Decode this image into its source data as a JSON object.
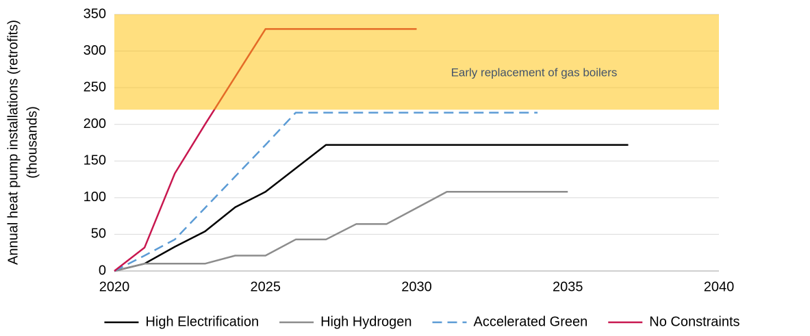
{
  "chart_data": {
    "type": "line",
    "y_label": [
      "Annual heat pump installations (retrofits)",
      "(thousands)"
    ],
    "annotation": "Early replacement of gas boilers",
    "shaded_range": [
      220,
      350
    ],
    "shaded_color": "#ffc000",
    "xlim": [
      2020,
      2040
    ],
    "xticks": [
      2020,
      2025,
      2030,
      2035,
      2040
    ],
    "ylim": [
      0,
      350
    ],
    "yticks": [
      0,
      50,
      100,
      150,
      200,
      250,
      300,
      350
    ],
    "grid": true,
    "legend": "bottom",
    "series": [
      {
        "name": "High Electrification",
        "color": "#000000",
        "dash": false,
        "x": [
          2020,
          2021,
          2022,
          2023,
          2024,
          2025,
          2026,
          2027,
          2028,
          2029,
          2030,
          2031,
          2032,
          2033,
          2034,
          2035,
          2036,
          2037
        ],
        "values": [
          0,
          10,
          33,
          54,
          87,
          108,
          140,
          172,
          172,
          172,
          172,
          172,
          172,
          172,
          172,
          172,
          172,
          172
        ]
      },
      {
        "name": "High Hydrogen",
        "color": "#8c8c8c",
        "dash": false,
        "x": [
          2020,
          2021,
          2022,
          2023,
          2024,
          2025,
          2026,
          2027,
          2028,
          2029,
          2030,
          2031,
          2032,
          2033,
          2034,
          2035
        ],
        "values": [
          0,
          10,
          10,
          10,
          21,
          21,
          43,
          43,
          64,
          64,
          86,
          108,
          108,
          108,
          108,
          108
        ]
      },
      {
        "name": "Accelerated Green",
        "color": "#5b9bd5",
        "dash": true,
        "x": [
          2020,
          2021,
          2022,
          2023,
          2024,
          2025,
          2026,
          2027,
          2028,
          2029,
          2030,
          2031,
          2032,
          2033,
          2034
        ],
        "values": [
          0,
          21,
          43,
          86,
          129,
          172,
          216,
          216,
          216,
          216,
          216,
          216,
          216,
          216,
          216
        ]
      },
      {
        "name": "No Constraints",
        "color": "#c8174f",
        "dash": false,
        "x": [
          2020,
          2021,
          2022,
          2023,
          2024,
          2025,
          2026,
          2027,
          2028,
          2029,
          2030
        ],
        "values": [
          0,
          32,
          133,
          200,
          265,
          330,
          330,
          330,
          330,
          330,
          330
        ]
      }
    ]
  }
}
